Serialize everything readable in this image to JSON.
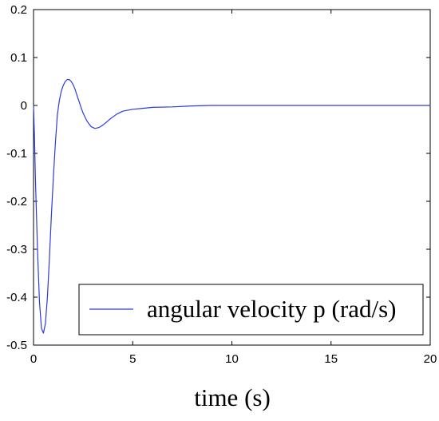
{
  "chart_data": {
    "type": "line",
    "title": "",
    "xlabel": "time (s)",
    "ylabel": "",
    "xlim": [
      0,
      20
    ],
    "ylim": [
      -0.5,
      0.2
    ],
    "x_ticks": [
      0,
      5,
      10,
      15,
      20
    ],
    "y_ticks": [
      -0.5,
      -0.4,
      -0.3,
      -0.2,
      -0.1,
      0,
      0.1,
      0.2
    ],
    "x_tick_labels": [
      "0",
      "5",
      "10",
      "15",
      "20"
    ],
    "y_tick_labels": [
      "-0.5",
      "-0.4",
      "-0.3",
      "-0.2",
      "-0.1",
      "0",
      "0.1",
      "0.2"
    ],
    "grid": false,
    "legend_position": "bottom-right",
    "series": [
      {
        "name": "angular velocity p (rad/s)",
        "color": "#2a3be0",
        "x": [
          0,
          0.05,
          0.1,
          0.2,
          0.3,
          0.4,
          0.5,
          0.6,
          0.7,
          0.8,
          0.9,
          1.0,
          1.1,
          1.2,
          1.3,
          1.4,
          1.5,
          1.6,
          1.7,
          1.8,
          1.9,
          2.0,
          2.1,
          2.2,
          2.3,
          2.4,
          2.5,
          2.7,
          2.9,
          3.1,
          3.3,
          3.5,
          3.7,
          3.9,
          4.2,
          4.5,
          5.0,
          5.5,
          6.0,
          7.0,
          8.0,
          9.0,
          10.0,
          12.0,
          15.0,
          20.0
        ],
        "values": [
          0,
          -0.07,
          -0.16,
          -0.3,
          -0.41,
          -0.465,
          -0.475,
          -0.455,
          -0.4,
          -0.32,
          -0.23,
          -0.15,
          -0.08,
          -0.02,
          0.01,
          0.03,
          0.042,
          0.05,
          0.054,
          0.054,
          0.05,
          0.043,
          0.033,
          0.02,
          0.008,
          -0.005,
          -0.016,
          -0.033,
          -0.044,
          -0.048,
          -0.046,
          -0.041,
          -0.034,
          -0.027,
          -0.018,
          -0.012,
          -0.008,
          -0.006,
          -0.004,
          -0.003,
          -0.001,
          0,
          0,
          0,
          0,
          0
        ]
      }
    ]
  }
}
